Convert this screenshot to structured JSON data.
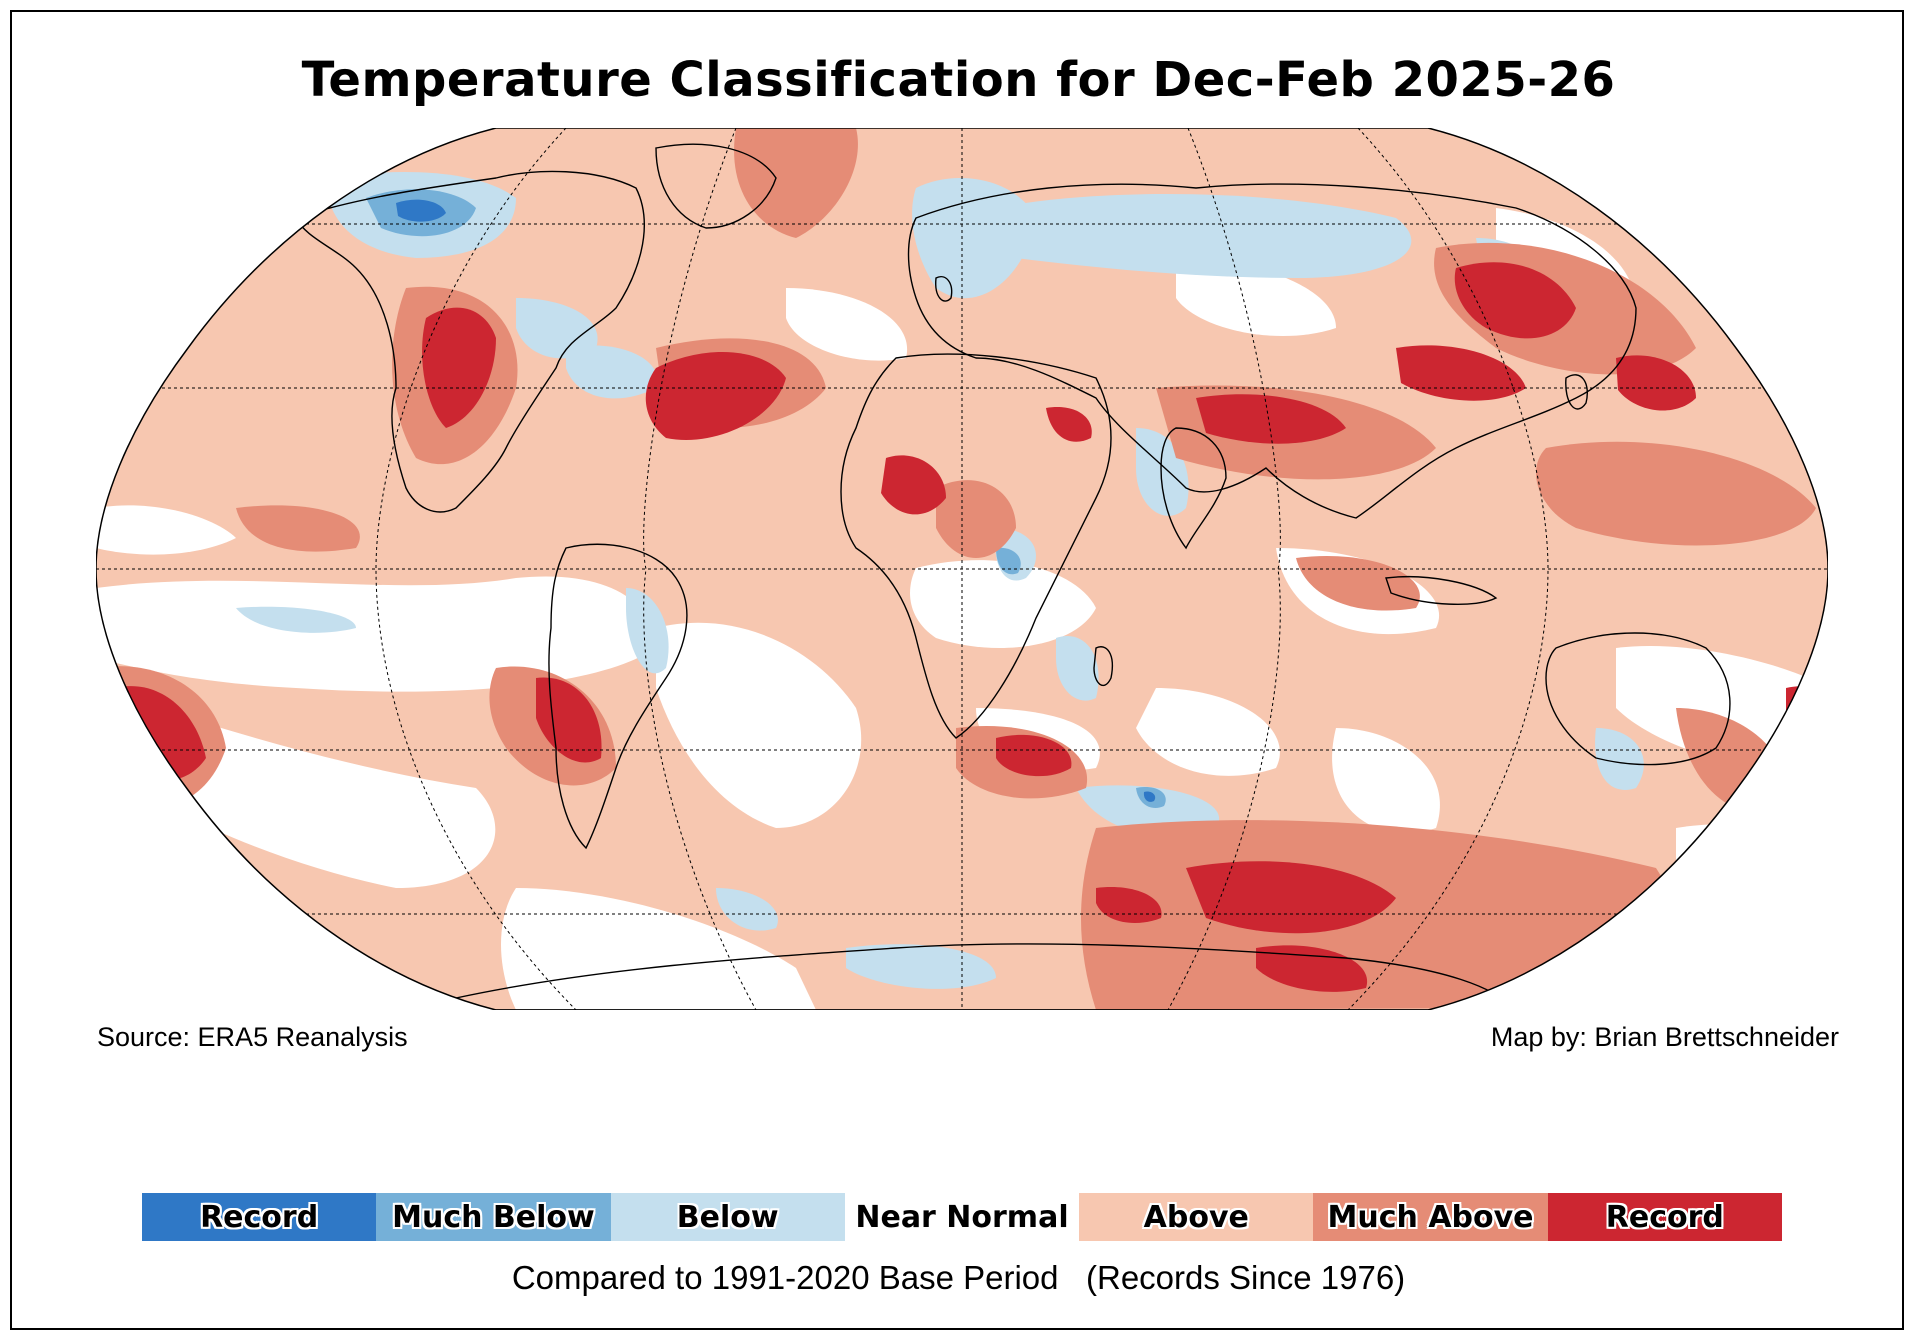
{
  "title": "Temperature Classification for Dec-Feb 2025-26",
  "source": "Source: ERA5 Reanalysis",
  "credit": "Map by: Brian Brettschneider",
  "footnote": "Compared to 1991-2020 Base Period   (Records Since 1976)",
  "colors": {
    "record_cold": "#2f78c6",
    "much_below": "#75b0d8",
    "below": "#c4dfee",
    "near_normal": "#ffffff",
    "above": "#f7c7b0",
    "much_above": "#e58c76",
    "record_warm": "#cc2631"
  },
  "legend": [
    {
      "label": "Record",
      "color": "#2f78c6"
    },
    {
      "label": "Much Below",
      "color": "#75b0d8"
    },
    {
      "label": "Below",
      "color": "#c4dfee"
    },
    {
      "label": "Near Normal",
      "color": "#ffffff"
    },
    {
      "label": "Above",
      "color": "#f7c7b0"
    },
    {
      "label": "Much Above",
      "color": "#e58c76"
    },
    {
      "label": "Record",
      "color": "#cc2631"
    }
  ]
}
